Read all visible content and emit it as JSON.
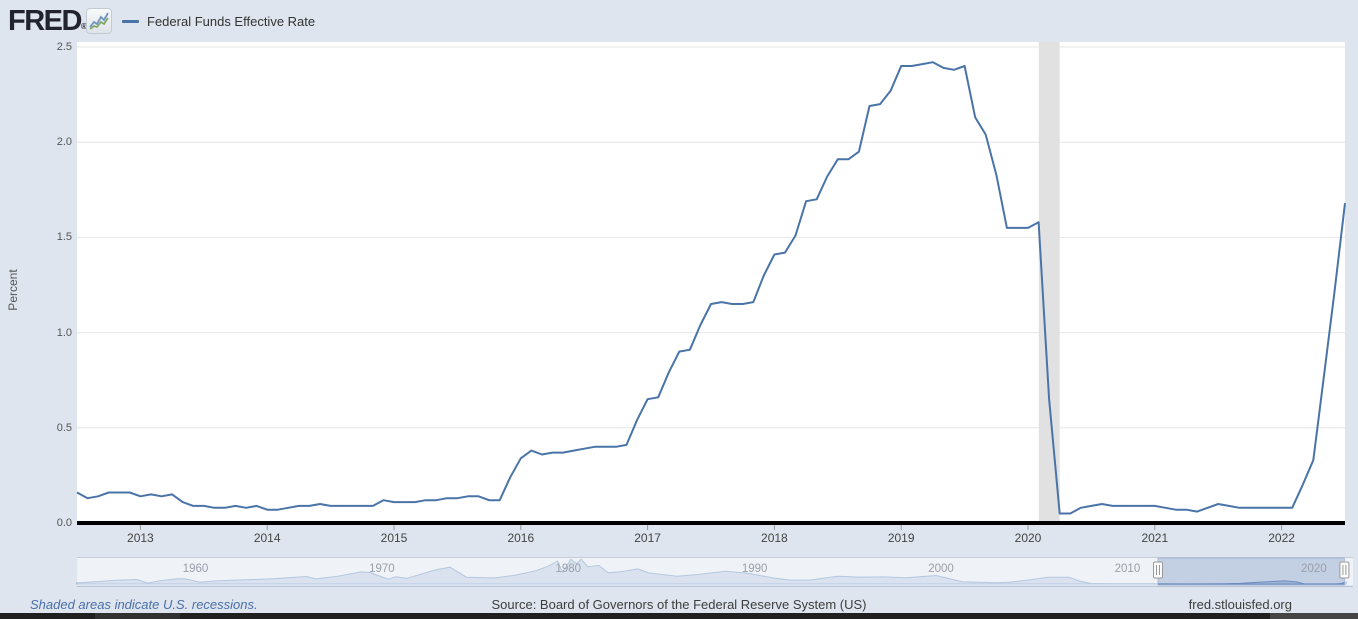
{
  "header": {
    "logo_text": "FRED",
    "logo_reg": "®",
    "legend": {
      "label": "Federal Funds Effective Rate",
      "color": "#4a74a8"
    }
  },
  "colors": {
    "line": "#4a74a8",
    "recession_band": "#e1e1e1",
    "gridline": "#e6e6e6",
    "axis_line": "#000000",
    "navigator_fill": "#a3b8d6",
    "navigator_stroke": "#6c8fc0",
    "link": "#4a6fa8"
  },
  "chart_data": {
    "type": "line",
    "title": "Federal Funds Effective Rate",
    "xlabel": "",
    "ylabel": "Percent",
    "ylim": [
      0,
      2.5
    ],
    "y_ticks": [
      "0.0",
      "0.5",
      "1.0",
      "1.5",
      "2.0",
      "2.5"
    ],
    "x_ticks": [
      2013,
      2014,
      2015,
      2016,
      2017,
      2018,
      2019,
      2020,
      2021,
      2022
    ],
    "x_range_years": [
      2012.5,
      2022.5
    ],
    "grid": "horizontal",
    "legend_position": "top-left",
    "recessions": [
      {
        "start": 2020.085,
        "end": 2020.25
      }
    ],
    "series": {
      "name": "Federal Funds Effective Rate",
      "color": "#4a74a8",
      "frequency": "monthly",
      "start_month": "2012-07",
      "end_month": "2022-07",
      "values": [
        0.16,
        0.13,
        0.14,
        0.16,
        0.16,
        0.16,
        0.14,
        0.15,
        0.14,
        0.15,
        0.11,
        0.09,
        0.09,
        0.08,
        0.08,
        0.09,
        0.08,
        0.09,
        0.07,
        0.07,
        0.08,
        0.09,
        0.09,
        0.1,
        0.09,
        0.09,
        0.09,
        0.09,
        0.09,
        0.12,
        0.11,
        0.11,
        0.11,
        0.12,
        0.12,
        0.13,
        0.13,
        0.14,
        0.14,
        0.12,
        0.12,
        0.24,
        0.34,
        0.38,
        0.36,
        0.37,
        0.37,
        0.38,
        0.39,
        0.4,
        0.4,
        0.4,
        0.41,
        0.54,
        0.65,
        0.66,
        0.79,
        0.9,
        0.91,
        1.04,
        1.15,
        1.16,
        1.15,
        1.15,
        1.16,
        1.3,
        1.41,
        1.42,
        1.51,
        1.69,
        1.7,
        1.82,
        1.91,
        1.91,
        1.95,
        2.19,
        2.2,
        2.27,
        2.4,
        2.4,
        2.41,
        2.42,
        2.39,
        2.38,
        2.4,
        2.13,
        2.04,
        1.83,
        1.55,
        1.55,
        1.55,
        1.58,
        0.65,
        0.05,
        0.05,
        0.08,
        0.09,
        0.1,
        0.09,
        0.09,
        0.09,
        0.09,
        0.09,
        0.08,
        0.07,
        0.07,
        0.06,
        0.08,
        0.1,
        0.09,
        0.08,
        0.08,
        0.08,
        0.08,
        0.08,
        0.08,
        0.2,
        0.33,
        0.77,
        1.21,
        1.68
      ]
    }
  },
  "navigator": {
    "x_range_years": [
      1954.5,
      2022.96
    ],
    "value_max": 20,
    "decade_labels": [
      "1960",
      "1970",
      "1980",
      "1990",
      "2000",
      "2010",
      "2020"
    ],
    "decade_years": [
      1960,
      1970,
      1980,
      1990,
      2000,
      2010,
      2020
    ],
    "selection_years": [
      2012.5,
      2022.5
    ],
    "series": [
      [
        1954.5,
        0.85
      ],
      [
        1954.9,
        1.2
      ],
      [
        1955.5,
        1.7
      ],
      [
        1956.5,
        2.75
      ],
      [
        1957.7,
        3.5
      ],
      [
        1958.3,
        0.7
      ],
      [
        1958.9,
        2.4
      ],
      [
        1959.9,
        4.0
      ],
      [
        1960.3,
        3.9
      ],
      [
        1961.1,
        1.45
      ],
      [
        1962,
        2.4
      ],
      [
        1963,
        3.0
      ],
      [
        1964,
        3.5
      ],
      [
        1965,
        4.05
      ],
      [
        1966.8,
        5.75
      ],
      [
        1967.3,
        3.95
      ],
      [
        1968.5,
        6.0
      ],
      [
        1969.7,
        9.2
      ],
      [
        1970.2,
        8.9
      ],
      [
        1971.2,
        3.7
      ],
      [
        1971.6,
        5.55
      ],
      [
        1972.2,
        4.3
      ],
      [
        1973.7,
        10.8
      ],
      [
        1974.5,
        12.9
      ],
      [
        1975.4,
        5.2
      ],
      [
        1976.9,
        4.65
      ],
      [
        1978,
        6.8
      ],
      [
        1979.1,
        10.1
      ],
      [
        1979.8,
        13.8
      ],
      [
        1980.28,
        17.6
      ],
      [
        1980.55,
        9.0
      ],
      [
        1981.0,
        19.1
      ],
      [
        1981.3,
        15.7
      ],
      [
        1981.55,
        19.1
      ],
      [
        1981.9,
        13.3
      ],
      [
        1982.5,
        14.2
      ],
      [
        1983,
        8.6
      ],
      [
        1983.7,
        9.5
      ],
      [
        1984.6,
        11.6
      ],
      [
        1985.2,
        8.5
      ],
      [
        1986.7,
        5.9
      ],
      [
        1987.8,
        7.3
      ],
      [
        1989.3,
        9.85
      ],
      [
        1990.5,
        8.2
      ],
      [
        1991.8,
        4.8
      ],
      [
        1992.8,
        3.0
      ],
      [
        1993.8,
        3.0
      ],
      [
        1995.3,
        6.0
      ],
      [
        1996.5,
        5.3
      ],
      [
        1997.8,
        5.5
      ],
      [
        1999.0,
        4.75
      ],
      [
        2000.6,
        6.5
      ],
      [
        2002.0,
        1.75
      ],
      [
        2003.8,
        1.0
      ],
      [
        2004.5,
        1.3
      ],
      [
        2005.5,
        3.0
      ],
      [
        2006.6,
        5.25
      ],
      [
        2007.7,
        5.25
      ],
      [
        2008.3,
        2.2
      ],
      [
        2008.9,
        0.4
      ],
      [
        2010,
        0.15
      ],
      [
        2012,
        0.14
      ],
      [
        2014,
        0.09
      ],
      [
        2015.95,
        0.2
      ],
      [
        2016.9,
        0.45
      ],
      [
        2018,
        1.45
      ],
      [
        2019.3,
        2.4
      ],
      [
        2019.95,
        1.55
      ],
      [
        2020.2,
        0.65
      ],
      [
        2020.35,
        0.05
      ],
      [
        2021.5,
        0.08
      ],
      [
        2022.1,
        0.1
      ],
      [
        2022.35,
        0.5
      ],
      [
        2022.6,
        1.68
      ]
    ]
  },
  "footer": {
    "recession_note": "Shaded areas indicate U.S. recessions.",
    "source": "Source: Board of Governors of the Federal Reserve System (US)",
    "site": "fred.stlouisfed.org"
  }
}
